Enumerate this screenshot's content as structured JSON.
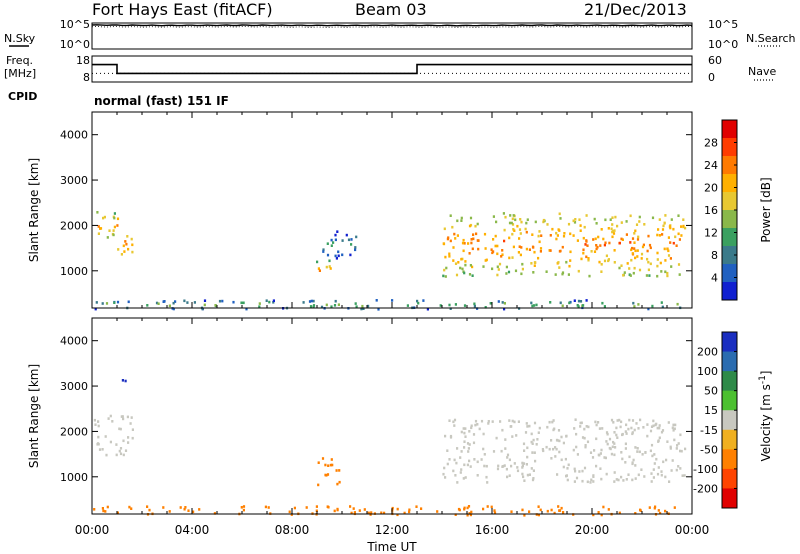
{
  "header": {
    "station": "Fort Hays East (fitACF)",
    "beam": "Beam 03",
    "date": "21/Dec/2013",
    "cpid": "normal (fast) 151 IF"
  },
  "panels": {
    "nsky_label": "N.Sky",
    "nsearch_label": "N.Search",
    "freq_label_top": "Freq.",
    "freq_label_unit": "[MHz]",
    "nave_label": "Nave",
    "cpid_label": "CPID",
    "noise_ticks_left": [
      "10^5",
      "10^0"
    ],
    "noise_ticks_right": [
      "10^5",
      "10^0"
    ],
    "freq_ticks": [
      "18",
      "8"
    ],
    "nave_ticks": [
      "60",
      "0"
    ]
  },
  "colorbars": {
    "power_label": "Power [dB]",
    "power_ticks": [
      "28",
      "24",
      "20",
      "16",
      "12",
      "8",
      "4"
    ],
    "power_colors": [
      "#e00000",
      "#ff3c00",
      "#ff7a00",
      "#ffb000",
      "#e8c832",
      "#8ab84a",
      "#3aa060",
      "#3a7a8a",
      "#2060c0",
      "#1020d0"
    ],
    "velocity_label": "Velocity [m s",
    "velocity_exp": "-1",
    "velocity_ticks": [
      "200",
      "100",
      "50",
      "15",
      "-15",
      "-50",
      "-100",
      "-200"
    ],
    "velocity_colors": [
      "#1a2ec0",
      "#2a6cb0",
      "#2e8a48",
      "#4cc030",
      "#c8c8c0",
      "#f0b020",
      "#ff8000",
      "#ff4400",
      "#e00000"
    ]
  },
  "chart_data": [
    {
      "type": "line",
      "title": "",
      "series": [
        {
          "name": "N.Sky",
          "values_log10": [
            5.0,
            4.9,
            4.95,
            4.9,
            4.92,
            4.88,
            4.95,
            4.9,
            4.93
          ]
        },
        {
          "name": "N.Search",
          "values_log10": [
            4.6,
            4.55,
            4.6,
            4.5,
            4.55,
            4.5,
            4.6,
            4.55,
            4.6
          ]
        }
      ],
      "x_hours": [
        0,
        3,
        6,
        9,
        12,
        15,
        18,
        21,
        24
      ],
      "ylim_left": [
        "10^0",
        "10^5"
      ]
    },
    {
      "type": "line",
      "series": [
        {
          "name": "Freq. [MHz]",
          "x_hours": [
            0,
            1.0,
            1.0,
            13.0,
            13.0,
            24
          ],
          "values": [
            15,
            15,
            11,
            11,
            15,
            15
          ]
        },
        {
          "name": "Nave",
          "x_hours": [
            0,
            24
          ],
          "values": [
            18,
            18
          ]
        }
      ],
      "ylim_left": [
        8,
        18
      ],
      "ylim_right": [
        0,
        60
      ]
    },
    {
      "type": "heatmap",
      "variable": "Power [dB]",
      "xlabel": "",
      "ylabel": "Slant Range [km]",
      "xlim_hours": [
        0,
        24
      ],
      "ylim_km": [
        180,
        4500
      ],
      "ytick_values": [
        1000,
        2000,
        3000,
        4000
      ],
      "clim": [
        0,
        32
      ],
      "echo_regions": [
        {
          "t0": 0.0,
          "t1": 1.0,
          "r0": 1700,
          "r1": 2400,
          "power_db": 18
        },
        {
          "t0": 1.0,
          "t1": 1.6,
          "r0": 1300,
          "r1": 2000,
          "power_db": 20
        },
        {
          "t0": 8.9,
          "t1": 9.6,
          "r0": 850,
          "r1": 1250,
          "power_db": 18
        },
        {
          "t0": 9.2,
          "t1": 10.8,
          "r0": 1300,
          "r1": 1900,
          "power_db": 6
        },
        {
          "t0": 14.0,
          "t1": 23.7,
          "r0": 900,
          "r1": 2300,
          "power_db": 20
        },
        {
          "t0": 0.0,
          "t1": 23.5,
          "r0": 180,
          "r1": 380,
          "power_db": 10
        }
      ]
    },
    {
      "type": "heatmap",
      "variable": "Velocity [m s-1]",
      "xlabel": "Time UT",
      "ylabel": "Slant Range [km]",
      "xlim_hours": [
        0,
        24
      ],
      "ylim_km": [
        180,
        4500
      ],
      "xtick_labels": [
        "00:00",
        "04:00",
        "08:00",
        "12:00",
        "16:00",
        "20:00",
        "00:00"
      ],
      "ytick_values": [
        1000,
        2000,
        3000,
        4000
      ],
      "clim": [
        -250,
        250
      ],
      "echo_regions": [
        {
          "t0": 0.0,
          "t1": 1.6,
          "r0": 1500,
          "r1": 2400,
          "velocity": 0
        },
        {
          "t0": 8.9,
          "t1": 9.9,
          "r0": 850,
          "r1": 1450,
          "velocity": -60
        },
        {
          "t0": 14.0,
          "t1": 23.7,
          "r0": 900,
          "r1": 2300,
          "velocity": 0
        },
        {
          "t0": 0.0,
          "t1": 23.5,
          "r0": 180,
          "r1": 380,
          "velocity": -60
        },
        {
          "t0": 0.9,
          "t1": 1.3,
          "r0": 3100,
          "r1": 3300,
          "velocity": 180
        }
      ]
    }
  ]
}
